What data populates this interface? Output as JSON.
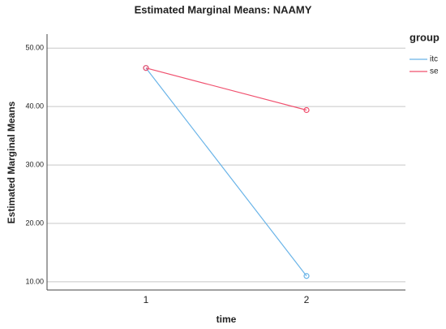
{
  "chart_data": {
    "type": "line",
    "title": "Estimated Marginal Means: NAAMY",
    "x_label": "time",
    "y_label": "Estimated Marginal Means",
    "categories": [
      "1",
      "2"
    ],
    "series": [
      {
        "name": "itc",
        "color": "#6ab4e8",
        "values": [
          46.6,
          11.0
        ]
      },
      {
        "name": "se",
        "color": "#f0506e",
        "values": [
          46.6,
          39.4
        ]
      }
    ],
    "ylim": [
      8.6,
      52.4
    ],
    "yticks": [
      {
        "value": 10,
        "label": "10.00"
      },
      {
        "value": 20,
        "label": "20.00"
      },
      {
        "value": 30,
        "label": "30.00"
      },
      {
        "value": 40,
        "label": "40.00"
      },
      {
        "value": 50,
        "label": "50.00"
      }
    ],
    "grid": true,
    "legend_title": "group",
    "legend": "right"
  }
}
